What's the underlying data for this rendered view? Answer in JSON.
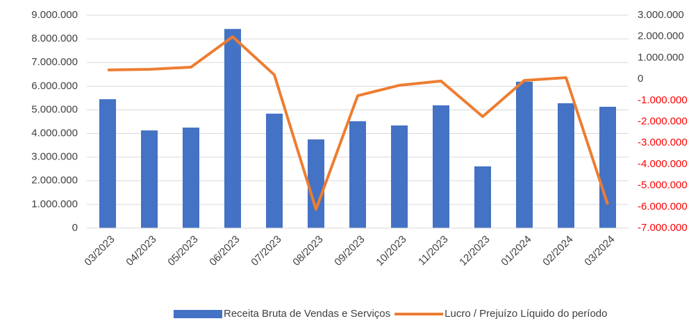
{
  "chart_data": {
    "type": "bar_line",
    "categories": [
      "03/2023",
      "04/2023",
      "05/2023",
      "06/2023",
      "07/2023",
      "08/2023",
      "09/2023",
      "10/2023",
      "11/2023",
      "12/2023",
      "01/2024",
      "02/2024",
      "03/2024"
    ],
    "series": [
      {
        "name": "Receita Bruta de Vendas e Serviços",
        "type": "bar",
        "color": "#4472c4",
        "axis": "y",
        "values": [
          5450000,
          4130000,
          4250000,
          8420000,
          4840000,
          3750000,
          4520000,
          4340000,
          5190000,
          2610000,
          6190000,
          5280000,
          5130000
        ]
      },
      {
        "name": "Lucro / Prejuízo Líquido do período",
        "type": "line",
        "color": "#ed7d31",
        "axis": "y2",
        "values": [
          430000,
          460000,
          560000,
          1990000,
          200000,
          -6120000,
          -780000,
          -290000,
          -90000,
          -1760000,
          -60000,
          70000,
          -5890000
        ]
      }
    ],
    "ylim": [
      0,
      9000000
    ],
    "yticks": [
      {
        "value": 0,
        "label": "0"
      },
      {
        "value": 1000000,
        "label": "1.000.000"
      },
      {
        "value": 2000000,
        "label": "2.000.000"
      },
      {
        "value": 3000000,
        "label": "3.000.000"
      },
      {
        "value": 4000000,
        "label": "4.000.000"
      },
      {
        "value": 5000000,
        "label": "5.000.000"
      },
      {
        "value": 6000000,
        "label": "6.000.000"
      },
      {
        "value": 7000000,
        "label": "7.000.000"
      },
      {
        "value": 8000000,
        "label": "8.000.000"
      },
      {
        "value": 9000000,
        "label": "9.000.000"
      }
    ],
    "y2lim": [
      -7000000,
      3000000
    ],
    "y2ticks": [
      {
        "value": -7000000,
        "label": "-7.000.000"
      },
      {
        "value": -6000000,
        "label": "-6.000.000"
      },
      {
        "value": -5000000,
        "label": "-5.000.000"
      },
      {
        "value": -4000000,
        "label": "-4.000.000"
      },
      {
        "value": -3000000,
        "label": "-3.000.000"
      },
      {
        "value": -2000000,
        "label": "-2.000.000"
      },
      {
        "value": -1000000,
        "label": "-1.000.000"
      },
      {
        "value": 0,
        "label": "0"
      },
      {
        "value": 1000000,
        "label": "1.000.000"
      },
      {
        "value": 2000000,
        "label": "2.000.000"
      },
      {
        "value": 3000000,
        "label": "3.000.000"
      }
    ],
    "y2_negative_label_color": "#ff0000",
    "grid": true,
    "legend": "bottom"
  }
}
